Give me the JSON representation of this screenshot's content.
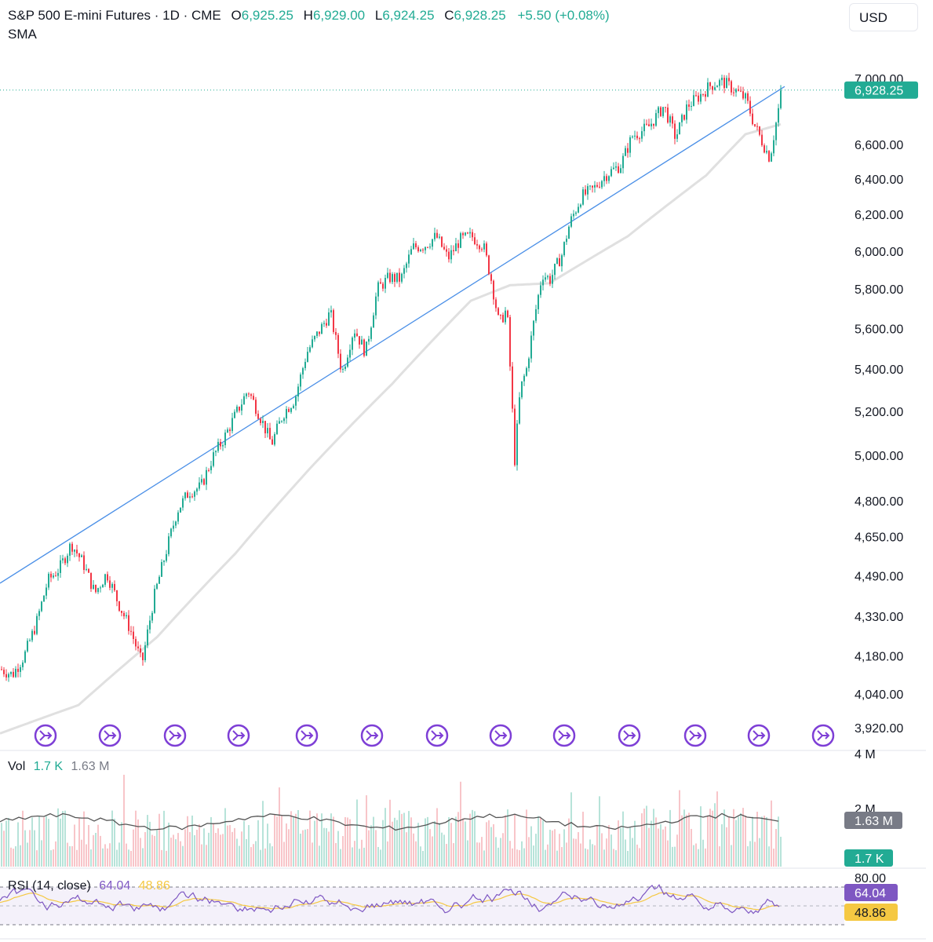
{
  "header": {
    "symbol": "S&P 500 E-mini Futures · 1D · CME",
    "open_label": "O",
    "open": "6,925.25",
    "high_label": "H",
    "high": "6,929.00",
    "low_label": "L",
    "low": "6,924.25",
    "close_label": "C",
    "close": "6,928.25",
    "change": "+5.50 (+0.08%)",
    "indicator": "SMA"
  },
  "currency": "USD",
  "colors": {
    "up": "#22ab94",
    "down": "#f23645",
    "trend": "#4a8fe7",
    "sma": "#e0e0e0",
    "rsi": "#7e57c2",
    "rsi_ma": "#f5c842",
    "vol_ma": "#555555"
  },
  "volume_pane": {
    "title": "Vol",
    "value": "1.7 K",
    "ma_value": "1.63 M",
    "ticks": [
      "4 M",
      "2 M"
    ],
    "badge_ma": "1.63 M",
    "badge_value": "1.7 K"
  },
  "rsi_pane": {
    "title": "RSI (14, close)",
    "value": "64.04",
    "ma_value": "48.86",
    "ticks": [
      "80.00"
    ],
    "badge_value": "64.04",
    "badge_ma": "48.86"
  },
  "chart_data": {
    "type": "candlestick",
    "ylabel_ticks": [
      "7,000.00",
      "6,600.00",
      "6,400.00",
      "6,200.00",
      "6,000.00",
      "5,800.00",
      "5,600.00",
      "5,400.00",
      "5,200.00",
      "5,000.00",
      "4,800.00",
      "4,650.00",
      "4,490.00",
      "4,330.00",
      "4,180.00",
      "4,040.00",
      "3,920.00"
    ],
    "y_tick_values": [
      7000,
      6600,
      6400,
      6200,
      6000,
      5800,
      5600,
      5400,
      5200,
      5000,
      4800,
      4650,
      4490,
      4330,
      4180,
      4040,
      3920
    ],
    "scale": "log",
    "last_price": 6928.25,
    "last_price_label": "6,928.25",
    "close_path_approx": [
      [
        0,
        4130
      ],
      [
        15,
        4110
      ],
      [
        30,
        4180
      ],
      [
        45,
        4300
      ],
      [
        60,
        4470
      ],
      [
        75,
        4520
      ],
      [
        90,
        4620
      ],
      [
        105,
        4540
      ],
      [
        120,
        4420
      ],
      [
        135,
        4500
      ],
      [
        150,
        4380
      ],
      [
        165,
        4280
      ],
      [
        180,
        4150
      ],
      [
        195,
        4400
      ],
      [
        210,
        4580
      ],
      [
        225,
        4760
      ],
      [
        240,
        4840
      ],
      [
        255,
        4860
      ],
      [
        270,
        4990
      ],
      [
        285,
        5080
      ],
      [
        300,
        5190
      ],
      [
        315,
        5300
      ],
      [
        330,
        5180
      ],
      [
        345,
        5050
      ],
      [
        360,
        5190
      ],
      [
        375,
        5260
      ],
      [
        390,
        5480
      ],
      [
        405,
        5580
      ],
      [
        420,
        5680
      ],
      [
        435,
        5380
      ],
      [
        450,
        5600
      ],
      [
        465,
        5480
      ],
      [
        480,
        5800
      ],
      [
        495,
        5860
      ],
      [
        510,
        5850
      ],
      [
        525,
        6020
      ],
      [
        540,
        6030
      ],
      [
        555,
        6080
      ],
      [
        570,
        5960
      ],
      [
        585,
        6060
      ],
      [
        600,
        6080
      ],
      [
        615,
        6030
      ],
      [
        625,
        5850
      ],
      [
        635,
        5620
      ],
      [
        645,
        5700
      ],
      [
        655,
        4980
      ],
      [
        662,
        5300
      ],
      [
        670,
        5400
      ],
      [
        680,
        5650
      ],
      [
        690,
        5880
      ],
      [
        700,
        5850
      ],
      [
        715,
        5980
      ],
      [
        725,
        6150
      ],
      [
        740,
        6300
      ],
      [
        755,
        6340
      ],
      [
        770,
        6420
      ],
      [
        790,
        6480
      ],
      [
        805,
        6650
      ],
      [
        825,
        6700
      ],
      [
        845,
        6830
      ],
      [
        860,
        6640
      ],
      [
        875,
        6830
      ],
      [
        890,
        6890
      ],
      [
        905,
        6960
      ],
      [
        920,
        6980
      ],
      [
        935,
        6930
      ],
      [
        950,
        6870
      ],
      [
        960,
        6720
      ],
      [
        970,
        6620
      ],
      [
        980,
        6520
      ],
      [
        990,
        6780
      ],
      [
        995,
        6928
      ]
    ],
    "trendline": {
      "x": [
        0,
        1000
      ],
      "y": [
        4460,
        6950
      ]
    },
    "sma_path_approx": [
      [
        0,
        3900
      ],
      [
        100,
        4000
      ],
      [
        200,
        4250
      ],
      [
        300,
        4580
      ],
      [
        400,
        4960
      ],
      [
        500,
        5330
      ],
      [
        600,
        5740
      ],
      [
        650,
        5820
      ],
      [
        700,
        5830
      ],
      [
        800,
        6080
      ],
      [
        900,
        6420
      ],
      [
        950,
        6660
      ],
      [
        995,
        6720
      ]
    ],
    "event_markers_x": [
      58,
      140,
      223,
      304,
      391,
      474,
      557,
      638,
      719,
      802,
      886,
      967,
      1049
    ]
  }
}
